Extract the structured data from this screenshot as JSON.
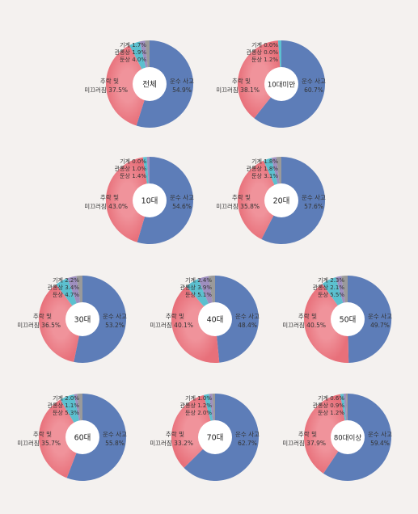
{
  "colors": {
    "transport": "#5d7db8",
    "fall": "#e8707a",
    "fall_light": "#f0939b",
    "stumble": "#5cc0cf",
    "scald": "#9e8fbf",
    "machine": "#9a9a9a",
    "background": "#f4f1ef"
  },
  "categories": [
    "운수 사고",
    "추락 및 미끄러짐",
    "둔상",
    "관통상",
    "기계"
  ],
  "chart_data": [
    {
      "type": "pie",
      "title": "전체",
      "slices": [
        {
          "label": "운수 사고",
          "value": 54.9
        },
        {
          "label": "추락 및 미끄러짐",
          "value": 37.5
        },
        {
          "label": "둔상",
          "value": 4.0
        },
        {
          "label": "관통상",
          "value": 1.9
        },
        {
          "label": "기계",
          "value": 1.7
        }
      ]
    },
    {
      "type": "pie",
      "title": "10대미만",
      "slices": [
        {
          "label": "운수 사고",
          "value": 60.7
        },
        {
          "label": "추락 및 미끄러짐",
          "value": 38.1
        },
        {
          "label": "둔상",
          "value": 1.2
        },
        {
          "label": "관통상",
          "value": 0.0
        },
        {
          "label": "기계",
          "value": 0.0
        }
      ]
    },
    {
      "type": "pie",
      "title": "10대",
      "slices": [
        {
          "label": "운수 사고",
          "value": 54.6
        },
        {
          "label": "추락 및 미끄러짐",
          "value": 43.0
        },
        {
          "label": "둔상",
          "value": 1.4
        },
        {
          "label": "관통상",
          "value": 1.0
        },
        {
          "label": "기계",
          "value": 0.0
        }
      ]
    },
    {
      "type": "pie",
      "title": "20대",
      "slices": [
        {
          "label": "운수 사고",
          "value": 57.6
        },
        {
          "label": "추락 및 미끄러짐",
          "value": 35.8
        },
        {
          "label": "둔상",
          "value": 3.1
        },
        {
          "label": "관통상",
          "value": 1.8
        },
        {
          "label": "기계",
          "value": 1.8
        }
      ]
    },
    {
      "type": "pie",
      "title": "30대",
      "slices": [
        {
          "label": "운수 사고",
          "value": 53.2
        },
        {
          "label": "추락 및 미끄러짐",
          "value": 36.5
        },
        {
          "label": "둔상",
          "value": 4.7
        },
        {
          "label": "관통상",
          "value": 3.4
        },
        {
          "label": "기계",
          "value": 2.2
        }
      ]
    },
    {
      "type": "pie",
      "title": "40대",
      "slices": [
        {
          "label": "운수 사고",
          "value": 48.4
        },
        {
          "label": "추락 및 미끄러짐",
          "value": 40.1
        },
        {
          "label": "둔상",
          "value": 5.1
        },
        {
          "label": "관통상",
          "value": 3.9
        },
        {
          "label": "기계",
          "value": 2.4
        }
      ]
    },
    {
      "type": "pie",
      "title": "50대",
      "slices": [
        {
          "label": "운수 사고",
          "value": 49.7
        },
        {
          "label": "추락 및 미끄러짐",
          "value": 40.5
        },
        {
          "label": "둔상",
          "value": 5.5
        },
        {
          "label": "관통상",
          "value": 2.1
        },
        {
          "label": "기계",
          "value": 2.3
        }
      ]
    },
    {
      "type": "pie",
      "title": "60대",
      "slices": [
        {
          "label": "운수 사고",
          "value": 55.8
        },
        {
          "label": "추락 및 미끄러짐",
          "value": 35.7
        },
        {
          "label": "둔상",
          "value": 5.3
        },
        {
          "label": "관통상",
          "value": 1.1
        },
        {
          "label": "기계",
          "value": 2.0
        }
      ]
    },
    {
      "type": "pie",
      "title": "70대",
      "slices": [
        {
          "label": "운수 사고",
          "value": 62.7
        },
        {
          "label": "추락 및 미끄러짐",
          "value": 33.2
        },
        {
          "label": "둔상",
          "value": 2.0
        },
        {
          "label": "관통상",
          "value": 1.2
        },
        {
          "label": "기계",
          "value": 1.0
        }
      ]
    },
    {
      "type": "pie",
      "title": "80대이상",
      "slices": [
        {
          "label": "운수 사고",
          "value": 59.4
        },
        {
          "label": "추락 및 미끄러짐",
          "value": 37.9
        },
        {
          "label": "둔상",
          "value": 1.2
        },
        {
          "label": "관통상",
          "value": 0.9
        },
        {
          "label": "기계",
          "value": 0.6
        }
      ]
    }
  ]
}
